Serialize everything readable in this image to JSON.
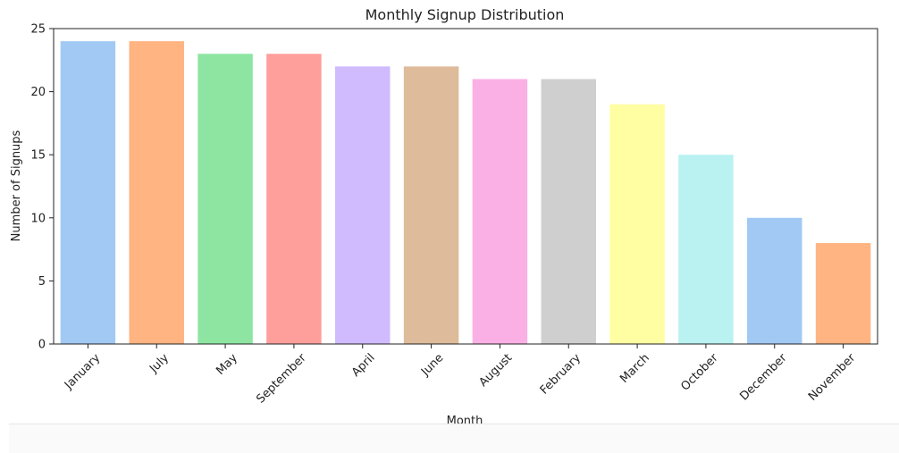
{
  "chart_data": {
    "type": "bar",
    "title": "Monthly Signup Distribution",
    "xlabel": "Month",
    "ylabel": "Number of Signups",
    "categories": [
      "January",
      "July",
      "May",
      "September",
      "April",
      "June",
      "August",
      "February",
      "March",
      "October",
      "December",
      "November"
    ],
    "values": [
      24,
      24,
      23,
      23,
      22,
      22,
      21,
      21,
      19,
      15,
      10,
      8
    ],
    "colors": [
      "#a1c9f4",
      "#ffb482",
      "#8de5a1",
      "#ff9f9b",
      "#d0bbff",
      "#debb9b",
      "#fab0e4",
      "#cfcfcf",
      "#fffea3",
      "#b9f2f0",
      "#a1c9f4",
      "#ffb482"
    ],
    "ylim": [
      0,
      25
    ],
    "yticks": [
      0,
      5,
      10,
      15,
      20,
      25
    ],
    "grid": false,
    "legend": "none"
  }
}
